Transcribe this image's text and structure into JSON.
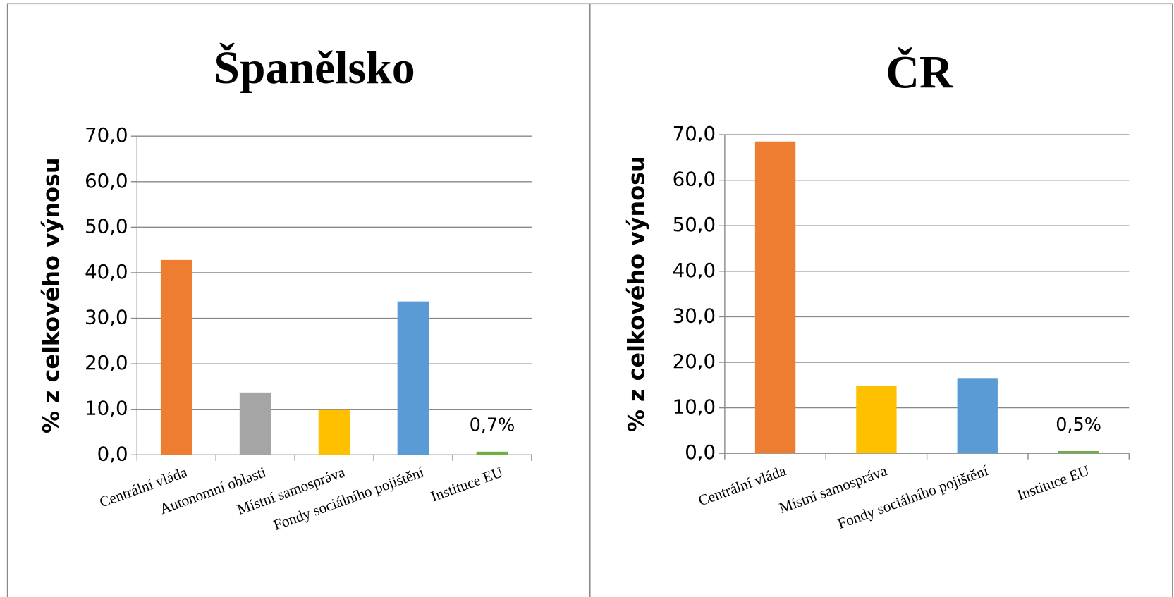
{
  "chart_data": [
    {
      "type": "bar",
      "title": "Španělsko",
      "ylabel": "% z celkového výnosu",
      "categories": [
        "Centrální vláda",
        "Autonomní oblasti",
        "Místní samospráva",
        "Fondy sociálního pojištění",
        "Instituce EU"
      ],
      "values": [
        42.8,
        13.7,
        10.0,
        33.7,
        0.7
      ],
      "value_labels": [
        null,
        null,
        null,
        null,
        "0,7%"
      ],
      "colors": [
        "#ED7D31",
        "#A5A5A5",
        "#FFC000",
        "#5B9BD5",
        "#70AD47"
      ],
      "ylim": [
        0,
        70
      ],
      "yticks": [
        {
          "value": 0,
          "label": "0,0"
        },
        {
          "value": 10,
          "label": "10,0"
        },
        {
          "value": 20,
          "label": "20,0"
        },
        {
          "value": 30,
          "label": "30,0"
        },
        {
          "value": 40,
          "label": "40,0"
        },
        {
          "value": 50,
          "label": "50,0"
        },
        {
          "value": 60,
          "label": "60,0"
        },
        {
          "value": 70,
          "label": "70,0"
        }
      ],
      "grid": true
    },
    {
      "type": "bar",
      "title": "ČR",
      "ylabel": "% z celkového výnosu",
      "categories": [
        "Centrální vláda",
        "Místní samospráva",
        "Fondy sociálního pojištění",
        "Instituce EU"
      ],
      "values": [
        68.5,
        14.9,
        16.4,
        0.5
      ],
      "value_labels": [
        null,
        null,
        null,
        "0,5%"
      ],
      "colors": [
        "#ED7D31",
        "#FFC000",
        "#5B9BD5",
        "#70AD47"
      ],
      "ylim": [
        0,
        70
      ],
      "yticks": [
        {
          "value": 0,
          "label": "0,0"
        },
        {
          "value": 10,
          "label": "10,0"
        },
        {
          "value": 20,
          "label": "20,0"
        },
        {
          "value": 30,
          "label": "30,0"
        },
        {
          "value": 40,
          "label": "40,0"
        },
        {
          "value": 50,
          "label": "50,0"
        },
        {
          "value": 60,
          "label": "60,0"
        },
        {
          "value": 70,
          "label": "70,0"
        }
      ],
      "grid": true
    }
  ]
}
